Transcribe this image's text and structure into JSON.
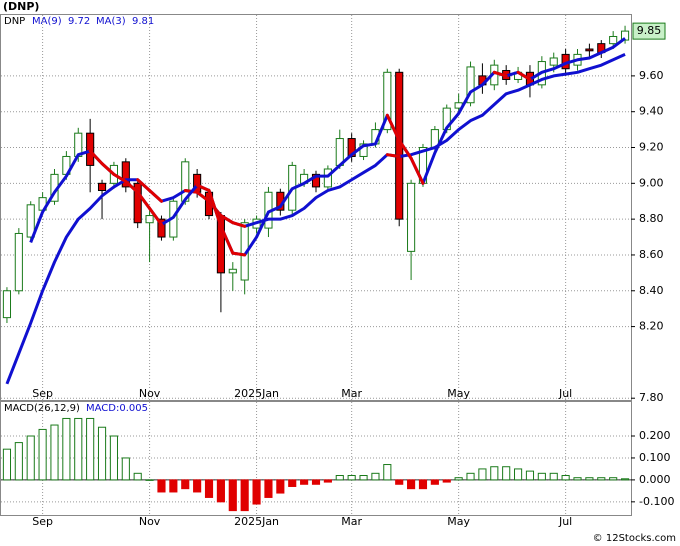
{
  "chart_data": [
    {
      "type": "candlestick",
      "title": "(DNP)",
      "symbol": "DNP",
      "categories": [
        null,
        null,
        null,
        "Sep",
        null,
        null,
        null,
        null,
        null,
        null,
        null,
        null,
        "Nov",
        null,
        null,
        null,
        null,
        null,
        null,
        null,
        null,
        "2025Jan",
        null,
        null,
        null,
        null,
        null,
        null,
        null,
        "Mar",
        null,
        null,
        null,
        null,
        null,
        null,
        null,
        null,
        "May",
        null,
        null,
        null,
        null,
        null,
        null,
        null,
        null,
        "Jul",
        null,
        null,
        null,
        null,
        null
      ],
      "open": [
        8.25,
        8.4,
        8.7,
        8.85,
        8.9,
        9.05,
        9.15,
        9.28,
        9.0,
        9.0,
        9.12,
        9.0,
        8.78,
        8.8,
        8.7,
        8.9,
        9.05,
        8.95,
        8.82,
        8.5,
        8.46,
        8.75,
        8.75,
        8.95,
        8.85,
        9.0,
        9.05,
        8.98,
        9.1,
        9.25,
        9.15,
        9.22,
        9.3,
        9.62,
        8.62,
        9.0,
        9.2,
        9.3,
        9.42,
        9.45,
        9.6,
        9.55,
        9.63,
        9.58,
        9.62,
        9.55,
        9.66,
        9.72,
        9.66,
        9.75,
        9.78,
        9.78,
        9.8
      ],
      "high": [
        8.42,
        8.75,
        8.9,
        8.95,
        9.08,
        9.18,
        9.31,
        9.36,
        9.02,
        9.12,
        9.14,
        9.02,
        8.85,
        8.82,
        8.92,
        9.14,
        9.08,
        8.97,
        8.84,
        8.56,
        8.8,
        8.82,
        8.98,
        8.97,
        9.12,
        9.08,
        9.07,
        9.1,
        9.3,
        9.28,
        9.24,
        9.34,
        9.64,
        9.64,
        9.02,
        9.22,
        9.32,
        9.44,
        9.5,
        9.68,
        9.67,
        9.69,
        9.66,
        9.65,
        9.66,
        9.71,
        9.73,
        9.75,
        9.75,
        9.78,
        9.8,
        9.85,
        9.88
      ],
      "low": [
        8.22,
        8.38,
        8.68,
        8.83,
        8.88,
        9.02,
        9.12,
        8.95,
        8.8,
        8.97,
        8.95,
        8.75,
        8.56,
        8.68,
        8.68,
        8.88,
        8.92,
        8.8,
        8.28,
        8.4,
        8.38,
        8.72,
        8.7,
        8.82,
        8.82,
        8.98,
        8.95,
        8.96,
        9.08,
        9.12,
        9.13,
        9.2,
        9.28,
        8.76,
        8.46,
        8.98,
        9.18,
        9.28,
        9.4,
        9.43,
        9.5,
        9.52,
        9.55,
        9.56,
        9.48,
        9.53,
        9.62,
        9.6,
        9.63,
        9.7,
        9.7,
        9.75,
        9.78
      ],
      "close": [
        8.4,
        8.72,
        8.88,
        8.92,
        9.05,
        9.15,
        9.28,
        9.1,
        8.96,
        9.1,
        8.98,
        8.78,
        8.82,
        8.7,
        8.9,
        9.12,
        8.95,
        8.82,
        8.5,
        8.52,
        8.78,
        8.8,
        8.95,
        8.85,
        9.1,
        9.05,
        8.98,
        9.08,
        9.25,
        9.15,
        9.22,
        9.3,
        9.62,
        8.8,
        9.0,
        9.2,
        9.3,
        9.42,
        9.45,
        9.65,
        9.55,
        9.66,
        9.58,
        9.62,
        9.55,
        9.68,
        9.7,
        9.64,
        9.72,
        9.74,
        9.73,
        9.82,
        9.85
      ],
      "last_label": "9.85",
      "up_color": "#1a7a1a",
      "down_color": "#e00000",
      "series": [
        {
          "name": "MA(9)",
          "legend_value": "9.72",
          "color": "#1010d0",
          "fall_color": "#e00000",
          "values": [
            7.88,
            8.05,
            8.22,
            8.4,
            8.56,
            8.7,
            8.8,
            8.86,
            8.93,
            8.98,
            9.02,
            9.02,
            8.96,
            8.9,
            8.92,
            8.96,
            8.95,
            8.9,
            8.82,
            8.78,
            8.76,
            8.78,
            8.8,
            8.8,
            8.82,
            8.86,
            8.92,
            8.96,
            8.98,
            9.02,
            9.06,
            9.1,
            9.16,
            9.15,
            9.16,
            9.18,
            9.2,
            9.24,
            9.3,
            9.35,
            9.38,
            9.44,
            9.5,
            9.52,
            9.55,
            9.58,
            9.6,
            9.61,
            9.62,
            9.64,
            9.66,
            9.69,
            9.72
          ]
        },
        {
          "name": "MA(3)",
          "legend_value": "9.81",
          "color": "#1010d0",
          "fall_color": "#e00000",
          "values": [
            null,
            null,
            8.67,
            8.84,
            8.95,
            9.04,
            9.16,
            9.18,
            9.11,
            9.05,
            9.01,
            8.95,
            8.86,
            8.77,
            8.81,
            8.91,
            8.99,
            8.96,
            8.76,
            8.61,
            8.6,
            8.7,
            8.84,
            8.87,
            8.97,
            9.0,
            9.04,
            9.04,
            9.1,
            9.16,
            9.21,
            9.22,
            9.38,
            9.24,
            9.14,
            9.0,
            9.17,
            9.31,
            9.39,
            9.51,
            9.55,
            9.62,
            9.6,
            9.62,
            9.58,
            9.62,
            9.64,
            9.67,
            9.69,
            9.7,
            9.73,
            9.76,
            9.81
          ]
        }
      ],
      "ylim": [
        7.79,
        9.94
      ],
      "yticks": [
        {
          "value": 7.8,
          "label": "7.80"
        },
        {
          "value": 8.2,
          "label": "8.20"
        },
        {
          "value": 8.4,
          "label": "8.40"
        },
        {
          "value": 8.6,
          "label": "8.60"
        },
        {
          "value": 8.8,
          "label": "8.80"
        },
        {
          "value": 9.0,
          "label": "9.00"
        },
        {
          "value": 9.2,
          "label": "9.20"
        },
        {
          "value": 9.4,
          "label": "9.40"
        },
        {
          "value": 9.6,
          "label": "9.60"
        }
      ],
      "grid": true
    },
    {
      "type": "bar",
      "series_name": "MACD(26,12,9)",
      "legend_value": "MACD:0.005",
      "categories": [
        null,
        null,
        null,
        "Sep",
        null,
        null,
        null,
        null,
        null,
        null,
        null,
        null,
        "Nov",
        null,
        null,
        null,
        null,
        null,
        null,
        null,
        null,
        "2025Jan",
        null,
        null,
        null,
        null,
        null,
        null,
        null,
        "Mar",
        null,
        null,
        null,
        null,
        null,
        null,
        null,
        null,
        "May",
        null,
        null,
        null,
        null,
        null,
        null,
        null,
        null,
        "Jul",
        null,
        null,
        null,
        null,
        null
      ],
      "values": [
        0.14,
        0.17,
        0.2,
        0.23,
        0.25,
        0.28,
        0.28,
        0.28,
        0.24,
        0.2,
        0.1,
        0.03,
        0.0,
        -0.055,
        -0.055,
        -0.04,
        -0.055,
        -0.08,
        -0.1,
        -0.14,
        -0.14,
        -0.11,
        -0.08,
        -0.06,
        -0.03,
        -0.02,
        -0.02,
        -0.01,
        0.02,
        0.02,
        0.02,
        0.03,
        0.07,
        -0.02,
        -0.04,
        -0.04,
        -0.02,
        -0.01,
        0.01,
        0.03,
        0.05,
        0.06,
        0.06,
        0.05,
        0.04,
        0.03,
        0.03,
        0.02,
        0.01,
        0.01,
        0.01,
        0.01,
        0.005
      ],
      "up_color": "#1a7a1a",
      "down_color": "#e00000",
      "ylim": [
        -0.16,
        0.355
      ],
      "yticks": [
        {
          "value": 0.2,
          "label": "0.200"
        },
        {
          "value": 0.1,
          "label": "0.100"
        },
        {
          "value": 0,
          "label": "0.000"
        },
        {
          "value": -0.1,
          "label": "-0.100"
        }
      ],
      "grid": true
    }
  ],
  "watermark": "© 12Stocks.com"
}
